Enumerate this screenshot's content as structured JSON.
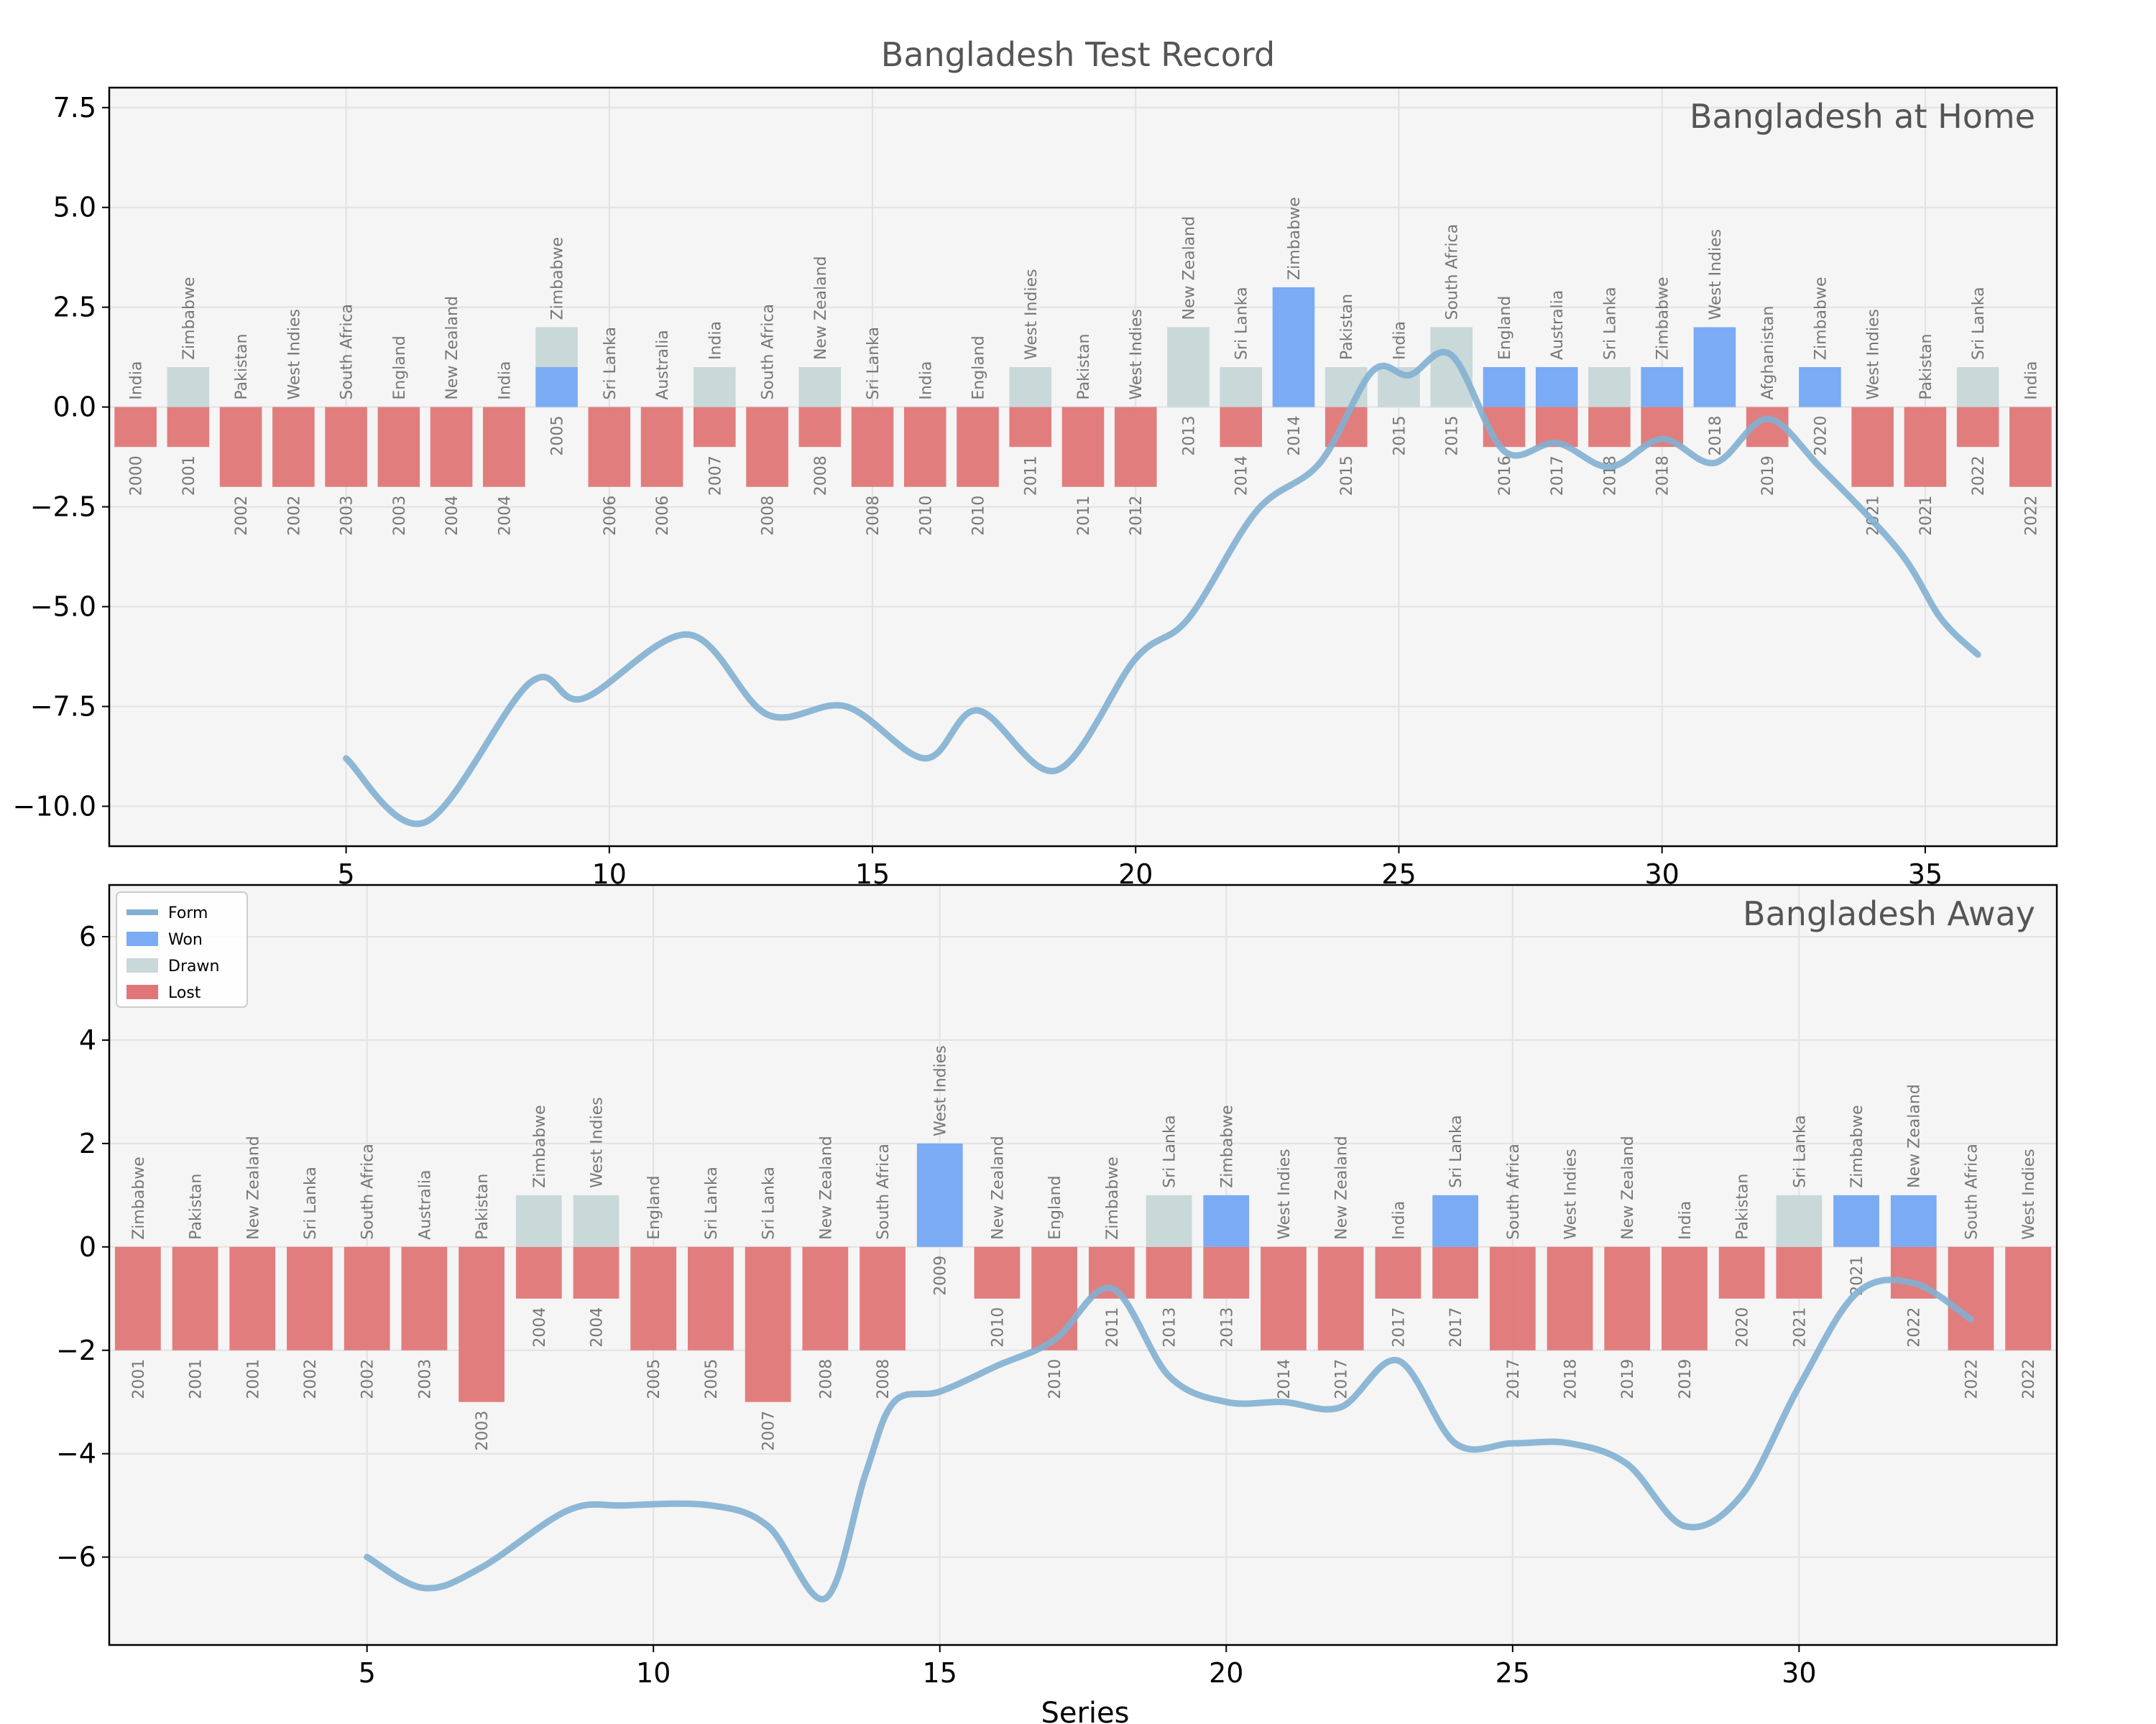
{
  "title": "Bangladesh Test Record",
  "xlabel": "Series",
  "colors": {
    "won": "#7aabf4",
    "drawn": "#c9d8d9",
    "lost": "#e07677",
    "form": "#82b0d2",
    "panel_bg": "#f5f5f5"
  },
  "legend": [
    {
      "key": "form",
      "label": "Form"
    },
    {
      "key": "won",
      "label": "Won"
    },
    {
      "key": "drawn",
      "label": "Drawn"
    },
    {
      "key": "lost",
      "label": "Lost"
    }
  ],
  "chart_data": [
    {
      "type": "bar",
      "title": "Bangladesh at Home",
      "xlim": [
        0.5,
        37.5
      ],
      "ylim": [
        -11,
        8
      ],
      "xticks": [
        5,
        10,
        15,
        20,
        25,
        30,
        35
      ],
      "yticks": [
        -10,
        -7.5,
        -5,
        -2.5,
        0,
        2.5,
        5,
        7.5
      ],
      "ytick_labels": [
        "−10.0",
        "−7.5",
        "−5.0",
        "−2.5",
        "0.0",
        "2.5",
        "5.0",
        "7.5"
      ],
      "series": [
        {
          "opponent": "India",
          "year": "2000",
          "won": 0,
          "drawn": 0,
          "lost": 1
        },
        {
          "opponent": "Zimbabwe",
          "year": "2001",
          "won": 0,
          "drawn": 1,
          "lost": 1
        },
        {
          "opponent": "Pakistan",
          "year": "2002",
          "won": 0,
          "drawn": 0,
          "lost": 2
        },
        {
          "opponent": "West Indies",
          "year": "2002",
          "won": 0,
          "drawn": 0,
          "lost": 2
        },
        {
          "opponent": "South Africa",
          "year": "2003",
          "won": 0,
          "drawn": 0,
          "lost": 2
        },
        {
          "opponent": "England",
          "year": "2003",
          "won": 0,
          "drawn": 0,
          "lost": 2
        },
        {
          "opponent": "New Zealand",
          "year": "2004",
          "won": 0,
          "drawn": 0,
          "lost": 2
        },
        {
          "opponent": "India",
          "year": "2004",
          "won": 0,
          "drawn": 0,
          "lost": 2
        },
        {
          "opponent": "Zimbabwe",
          "year": "2005",
          "won": 1,
          "drawn": 1,
          "lost": 0
        },
        {
          "opponent": "Sri Lanka",
          "year": "2006",
          "won": 0,
          "drawn": 0,
          "lost": 2
        },
        {
          "opponent": "Australia",
          "year": "2006",
          "won": 0,
          "drawn": 0,
          "lost": 2
        },
        {
          "opponent": "India",
          "year": "2007",
          "won": 0,
          "drawn": 1,
          "lost": 1
        },
        {
          "opponent": "South Africa",
          "year": "2008",
          "won": 0,
          "drawn": 0,
          "lost": 2
        },
        {
          "opponent": "New Zealand",
          "year": "2008",
          "won": 0,
          "drawn": 1,
          "lost": 1
        },
        {
          "opponent": "Sri Lanka",
          "year": "2008",
          "won": 0,
          "drawn": 0,
          "lost": 2
        },
        {
          "opponent": "India",
          "year": "2010",
          "won": 0,
          "drawn": 0,
          "lost": 2
        },
        {
          "opponent": "England",
          "year": "2010",
          "won": 0,
          "drawn": 0,
          "lost": 2
        },
        {
          "opponent": "West Indies",
          "year": "2011",
          "won": 0,
          "drawn": 1,
          "lost": 1
        },
        {
          "opponent": "Pakistan",
          "year": "2011",
          "won": 0,
          "drawn": 0,
          "lost": 2
        },
        {
          "opponent": "West Indies",
          "year": "2012",
          "won": 0,
          "drawn": 0,
          "lost": 2
        },
        {
          "opponent": "New Zealand",
          "year": "2013",
          "won": 0,
          "drawn": 2,
          "lost": 0
        },
        {
          "opponent": "Sri Lanka",
          "year": "2014",
          "won": 0,
          "drawn": 1,
          "lost": 1
        },
        {
          "opponent": "Zimbabwe",
          "year": "2014",
          "won": 3,
          "drawn": 0,
          "lost": 0
        },
        {
          "opponent": "Pakistan",
          "year": "2015",
          "won": 0,
          "drawn": 1,
          "lost": 1
        },
        {
          "opponent": "India",
          "year": "2015",
          "won": 0,
          "drawn": 1,
          "lost": 0
        },
        {
          "opponent": "South Africa",
          "year": "2015",
          "won": 0,
          "drawn": 2,
          "lost": 0
        },
        {
          "opponent": "England",
          "year": "2016",
          "won": 1,
          "drawn": 0,
          "lost": 1
        },
        {
          "opponent": "Australia",
          "year": "2017",
          "won": 1,
          "drawn": 0,
          "lost": 1
        },
        {
          "opponent": "Sri Lanka",
          "year": "2018",
          "won": 0,
          "drawn": 1,
          "lost": 1
        },
        {
          "opponent": "Zimbabwe",
          "year": "2018",
          "won": 1,
          "drawn": 0,
          "lost": 1
        },
        {
          "opponent": "West Indies",
          "year": "2018",
          "won": 2,
          "drawn": 0,
          "lost": 0
        },
        {
          "opponent": "Afghanistan",
          "year": "2019",
          "won": 0,
          "drawn": 0,
          "lost": 1
        },
        {
          "opponent": "Zimbabwe",
          "year": "2020",
          "won": 1,
          "drawn": 0,
          "lost": 0
        },
        {
          "opponent": "West Indies",
          "year": "2021",
          "won": 0,
          "drawn": 0,
          "lost": 2
        },
        {
          "opponent": "Pakistan",
          "year": "2021",
          "won": 0,
          "drawn": 0,
          "lost": 2
        },
        {
          "opponent": "Sri Lanka",
          "year": "2022",
          "won": 0,
          "drawn": 1,
          "lost": 1
        },
        {
          "opponent": "India",
          "year": "2022",
          "won": 0,
          "drawn": 0,
          "lost": 2
        }
      ],
      "form": [
        [
          5,
          -8.8
        ],
        [
          6.5,
          -10.4
        ],
        [
          8.5,
          -6.9
        ],
        [
          9.5,
          -7.3
        ],
        [
          11.5,
          -5.7
        ],
        [
          13,
          -7.7
        ],
        [
          14.5,
          -7.5
        ],
        [
          16,
          -8.8
        ],
        [
          17,
          -7.6
        ],
        [
          18.5,
          -9.1
        ],
        [
          20,
          -6.3
        ],
        [
          21,
          -5.3
        ],
        [
          22.3,
          -2.6
        ],
        [
          23.5,
          -1.4
        ],
        [
          24.5,
          0.9
        ],
        [
          25.2,
          0.8
        ],
        [
          26,
          1.3
        ],
        [
          27,
          -1.1
        ],
        [
          28,
          -0.9
        ],
        [
          29,
          -1.5
        ],
        [
          30,
          -0.8
        ],
        [
          31,
          -1.4
        ],
        [
          32,
          -0.3
        ],
        [
          33,
          -1.5
        ],
        [
          34.5,
          -3.6
        ],
        [
          35.3,
          -5.3
        ],
        [
          36,
          -6.2
        ]
      ]
    },
    {
      "type": "bar",
      "title": "Bangladesh Away",
      "xlim": [
        0.5,
        34.5
      ],
      "ylim": [
        -7.7,
        7
      ],
      "xticks": [
        5,
        10,
        15,
        20,
        25,
        30
      ],
      "yticks": [
        -6,
        -4,
        -2,
        0,
        2,
        4,
        6
      ],
      "ytick_labels": [
        "−6",
        "−4",
        "−2",
        "0",
        "2",
        "4",
        "6"
      ],
      "series": [
        {
          "opponent": "Zimbabwe",
          "year": "2001",
          "won": 0,
          "drawn": 0,
          "lost": 2
        },
        {
          "opponent": "Pakistan",
          "year": "2001",
          "won": 0,
          "drawn": 0,
          "lost": 2
        },
        {
          "opponent": "New Zealand",
          "year": "2001",
          "won": 0,
          "drawn": 0,
          "lost": 2
        },
        {
          "opponent": "Sri Lanka",
          "year": "2002",
          "won": 0,
          "drawn": 0,
          "lost": 2
        },
        {
          "opponent": "South Africa",
          "year": "2002",
          "won": 0,
          "drawn": 0,
          "lost": 2
        },
        {
          "opponent": "Australia",
          "year": "2003",
          "won": 0,
          "drawn": 0,
          "lost": 2
        },
        {
          "opponent": "Pakistan",
          "year": "2003",
          "won": 0,
          "drawn": 0,
          "lost": 3
        },
        {
          "opponent": "Zimbabwe",
          "year": "2004",
          "won": 0,
          "drawn": 1,
          "lost": 1
        },
        {
          "opponent": "West Indies",
          "year": "2004",
          "won": 0,
          "drawn": 1,
          "lost": 1
        },
        {
          "opponent": "England",
          "year": "2005",
          "won": 0,
          "drawn": 0,
          "lost": 2
        },
        {
          "opponent": "Sri Lanka",
          "year": "2005",
          "won": 0,
          "drawn": 0,
          "lost": 2
        },
        {
          "opponent": "Sri Lanka",
          "year": "2007",
          "won": 0,
          "drawn": 0,
          "lost": 3
        },
        {
          "opponent": "New Zealand",
          "year": "2008",
          "won": 0,
          "drawn": 0,
          "lost": 2
        },
        {
          "opponent": "South Africa",
          "year": "2008",
          "won": 0,
          "drawn": 0,
          "lost": 2
        },
        {
          "opponent": "West Indies",
          "year": "2009",
          "won": 2,
          "drawn": 0,
          "lost": 0
        },
        {
          "opponent": "New Zealand",
          "year": "2010",
          "won": 0,
          "drawn": 0,
          "lost": 1
        },
        {
          "opponent": "England",
          "year": "2010",
          "won": 0,
          "drawn": 0,
          "lost": 2
        },
        {
          "opponent": "Zimbabwe",
          "year": "2011",
          "won": 0,
          "drawn": 0,
          "lost": 1
        },
        {
          "opponent": "Sri Lanka",
          "year": "2013",
          "won": 0,
          "drawn": 1,
          "lost": 1
        },
        {
          "opponent": "Zimbabwe",
          "year": "2013",
          "won": 1,
          "drawn": 0,
          "lost": 1
        },
        {
          "opponent": "West Indies",
          "year": "2014",
          "won": 0,
          "drawn": 0,
          "lost": 2
        },
        {
          "opponent": "New Zealand",
          "year": "2017",
          "won": 0,
          "drawn": 0,
          "lost": 2
        },
        {
          "opponent": "India",
          "year": "2017",
          "won": 0,
          "drawn": 0,
          "lost": 1
        },
        {
          "opponent": "Sri Lanka",
          "year": "2017",
          "won": 1,
          "drawn": 0,
          "lost": 1
        },
        {
          "opponent": "South Africa",
          "year": "2017",
          "won": 0,
          "drawn": 0,
          "lost": 2
        },
        {
          "opponent": "West Indies",
          "year": "2018",
          "won": 0,
          "drawn": 0,
          "lost": 2
        },
        {
          "opponent": "New Zealand",
          "year": "2019",
          "won": 0,
          "drawn": 0,
          "lost": 2
        },
        {
          "opponent": "India",
          "year": "2019",
          "won": 0,
          "drawn": 0,
          "lost": 2
        },
        {
          "opponent": "Pakistan",
          "year": "2020",
          "won": 0,
          "drawn": 0,
          "lost": 1
        },
        {
          "opponent": "Sri Lanka",
          "year": "2021",
          "won": 0,
          "drawn": 1,
          "lost": 1
        },
        {
          "opponent": "Zimbabwe",
          "year": "2021",
          "won": 1,
          "drawn": 0,
          "lost": 0
        },
        {
          "opponent": "New Zealand",
          "year": "2022",
          "won": 1,
          "drawn": 0,
          "lost": 1
        },
        {
          "opponent": "South Africa",
          "year": "2022",
          "won": 0,
          "drawn": 0,
          "lost": 2
        },
        {
          "opponent": "West Indies",
          "year": "2022",
          "won": 0,
          "drawn": 0,
          "lost": 2
        }
      ],
      "form": [
        [
          5,
          -6
        ],
        [
          6,
          -6.6
        ],
        [
          7,
          -6.2
        ],
        [
          8.5,
          -5.1
        ],
        [
          9.5,
          -5
        ],
        [
          11,
          -5
        ],
        [
          12,
          -5.4
        ],
        [
          13,
          -6.8
        ],
        [
          13.7,
          -4.4
        ],
        [
          14.2,
          -3
        ],
        [
          15,
          -2.8
        ],
        [
          16,
          -2.3
        ],
        [
          17,
          -1.8
        ],
        [
          18,
          -0.8
        ],
        [
          19,
          -2.5
        ],
        [
          20,
          -3
        ],
        [
          21,
          -3
        ],
        [
          22,
          -3.1
        ],
        [
          23,
          -2.2
        ],
        [
          24,
          -3.8
        ],
        [
          25,
          -3.8
        ],
        [
          26,
          -3.8
        ],
        [
          27,
          -4.2
        ],
        [
          28,
          -5.4
        ],
        [
          29,
          -4.8
        ],
        [
          30,
          -2.7
        ],
        [
          31,
          -0.9
        ],
        [
          32,
          -0.7
        ],
        [
          33,
          -1.4
        ]
      ]
    }
  ]
}
